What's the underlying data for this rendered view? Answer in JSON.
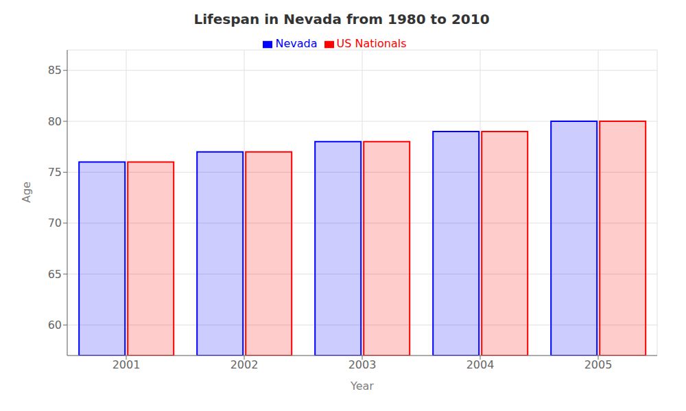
{
  "chart_data": {
    "type": "bar",
    "title": "Lifespan in Nevada from 1980 to 2010",
    "x_label": "Year",
    "y_label": "Age",
    "categories": [
      "2001",
      "2002",
      "2003",
      "2004",
      "2005"
    ],
    "series": [
      {
        "name": "Nevada",
        "color": "#0000ff",
        "values": [
          76,
          77,
          78,
          79,
          80
        ]
      },
      {
        "name": "US Nationals",
        "color": "#ff0000",
        "values": [
          76,
          77,
          78,
          79,
          80
        ]
      }
    ],
    "ylim": [
      57,
      87
    ],
    "yticks": [
      60,
      65,
      70,
      75,
      80,
      85
    ],
    "grid": true,
    "legend": "top"
  }
}
